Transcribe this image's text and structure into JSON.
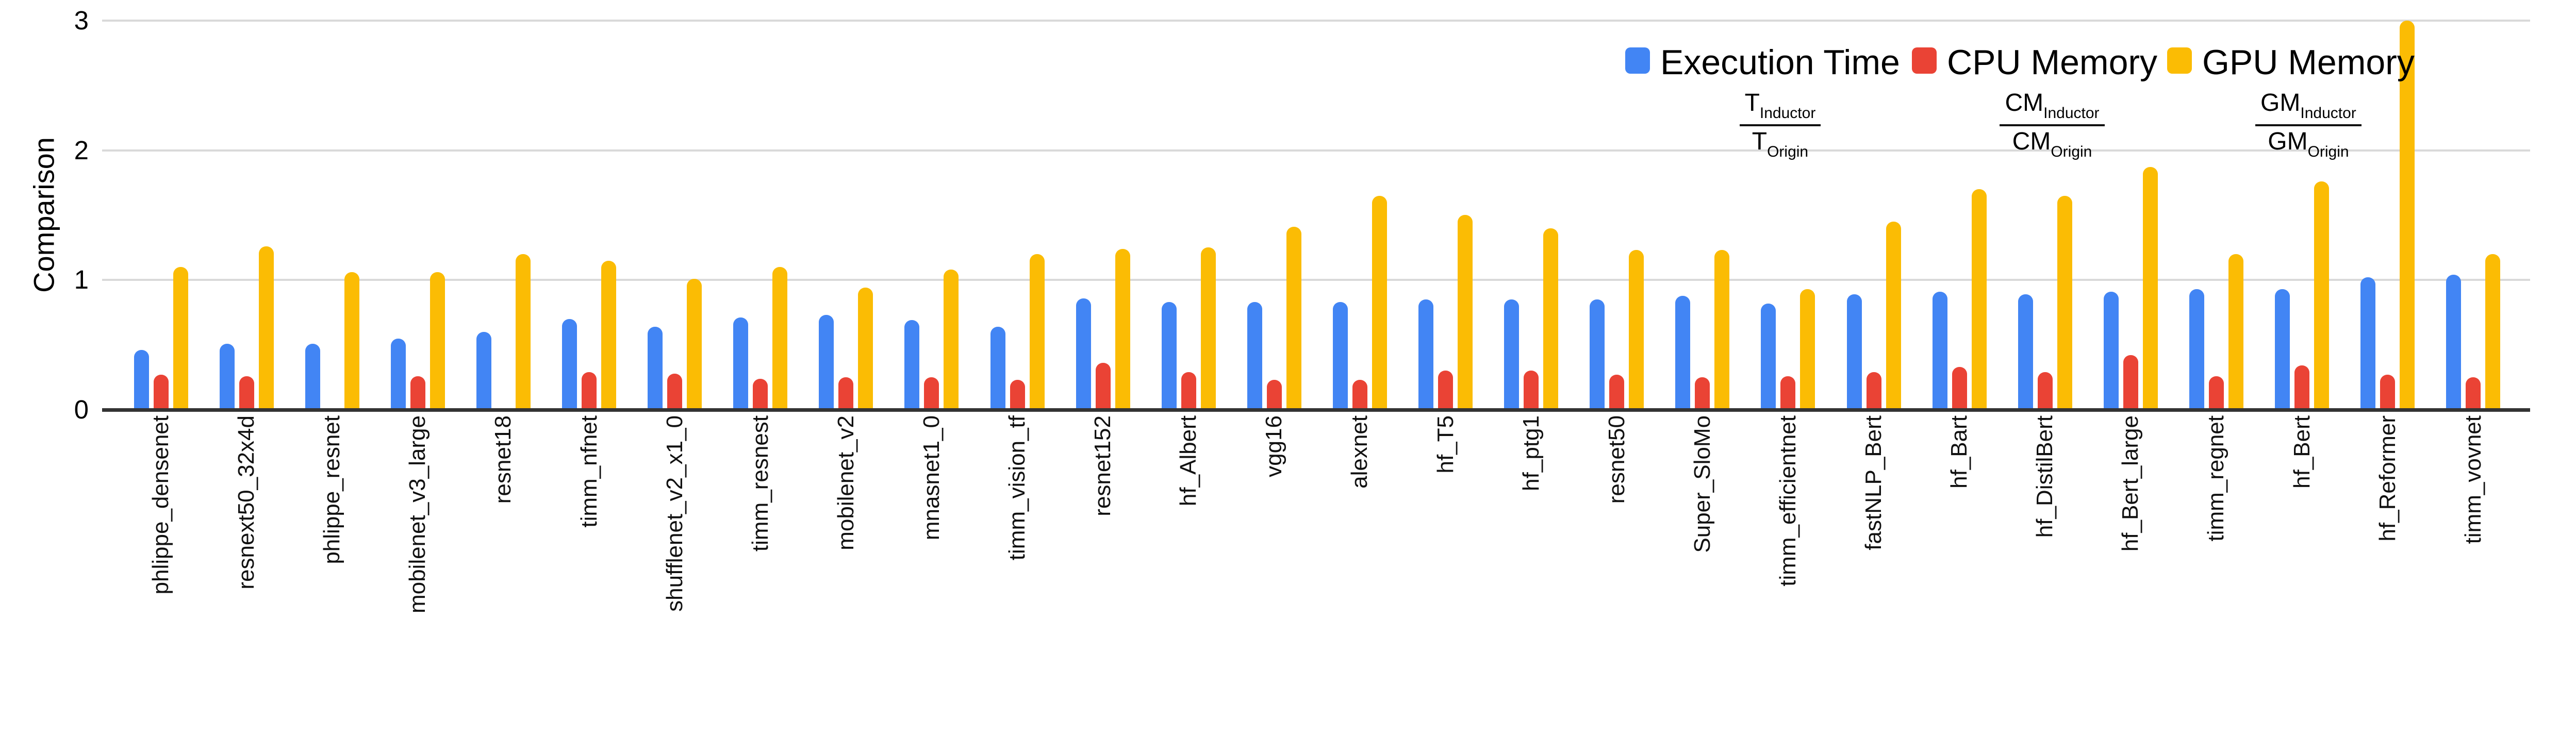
{
  "chart_data": {
    "type": "bar",
    "title": "",
    "xlabel": "",
    "ylabel": "Comparison",
    "ylim": [
      0,
      3
    ],
    "yticks": [
      0,
      1,
      2,
      3
    ],
    "grid": true,
    "legend_position": "top-right",
    "background_color": "#ffffff",
    "grid_color": "#d9d9d9",
    "axis_line_color": "#333333",
    "categories": [
      "phlippe_densenet",
      "resnext50_32x4d",
      "phlippe_resnet",
      "mobilenet_v3_large",
      "resnet18",
      "timm_nfnet",
      "shufflenet_v2_x1_0",
      "timm_resnest",
      "mobilenet_v2",
      "mnasnet1_0",
      "timm_vision_tf",
      "resnet152",
      "hf_Albert",
      "vgg16",
      "alexnet",
      "hf_T5",
      "hf_ptg1",
      "resnet50",
      "Super_SloMo",
      "timm_efficientnet",
      "fastNLP_Bert",
      "hf_Bart",
      "hf_DistilBert",
      "hf_Bert_large",
      "timm_regnet",
      "hf_Bert",
      "hf_Reformer",
      "timm_vovnet"
    ],
    "series": [
      {
        "name": "Execution Time",
        "color": "#4285f4",
        "formula": {
          "numerator_base": "T",
          "numerator_sub": "Inductor",
          "denominator_base": "T",
          "denominator_sub": "Origin"
        },
        "values": [
          0.46,
          0.51,
          0.51,
          0.55,
          0.6,
          0.7,
          0.64,
          0.71,
          0.73,
          0.69,
          0.64,
          0.86,
          0.83,
          0.83,
          0.83,
          0.85,
          0.85,
          0.85,
          0.88,
          0.82,
          0.89,
          0.91,
          0.89,
          0.91,
          0.93,
          0.93,
          1.02,
          1.04
        ]
      },
      {
        "name": "CPU Memory",
        "color": "#ea4335",
        "formula": {
          "numerator_base": "CM",
          "numerator_sub": "Inductor",
          "denominator_base": "CM",
          "denominator_sub": "Origin"
        },
        "values": [
          0.27,
          0.26,
          0,
          0.26,
          0,
          0.29,
          0.28,
          0.24,
          0.25,
          0.25,
          0.23,
          0.36,
          0.29,
          0.23,
          0.23,
          0.3,
          0.3,
          0.27,
          0.25,
          0.26,
          0.29,
          0.33,
          0.29,
          0.42,
          0.26,
          0.34,
          0.27,
          0.25
        ]
      },
      {
        "name": "GPU Memory",
        "color": "#fbbc04",
        "formula": {
          "numerator_base": "GM",
          "numerator_sub": "Inductor",
          "denominator_base": "GM",
          "denominator_sub": "Origin"
        },
        "values": [
          1.1,
          1.26,
          1.06,
          1.06,
          1.2,
          1.15,
          1.01,
          1.1,
          0.94,
          1.08,
          1.2,
          1.24,
          1.25,
          1.41,
          1.65,
          1.5,
          1.4,
          1.23,
          1.23,
          0.93,
          1.45,
          1.7,
          1.65,
          1.87,
          1.2,
          1.76,
          3.0,
          1.2
        ]
      }
    ]
  }
}
